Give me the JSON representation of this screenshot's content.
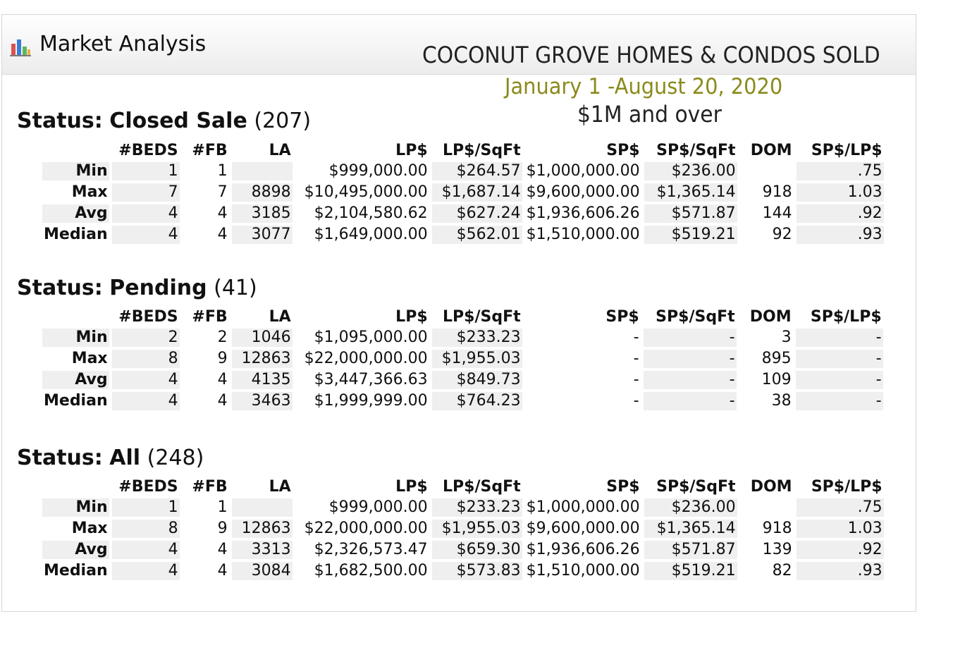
{
  "panel": {
    "title": "Market Analysis",
    "icon": "bar-chart-icon"
  },
  "banner": {
    "title": "COCONUT GROVE HOMES & CONDOS SOLD",
    "date_range": "January 1 -August 20, 2020",
    "subtitle": "$1M and over",
    "date_color": "#8a8a1c"
  },
  "columns": [
    "#BEDS",
    "#FB",
    "LA",
    "LP$",
    "LP$/SqFt",
    "SP$",
    "SP$/SqFt",
    "DOM",
    "SP$/LP$"
  ],
  "sections": [
    {
      "status_label": "Status:",
      "status_name": "Closed Sale",
      "count": "(207)",
      "rows": [
        {
          "label": "Min",
          "cells": [
            "1",
            "1",
            "",
            "$999,000.00",
            "$264.57",
            "$1,000,000.00",
            "$236.00",
            "",
            ".75"
          ]
        },
        {
          "label": "Max",
          "cells": [
            "7",
            "7",
            "8898",
            "$10,495,000.00",
            "$1,687.14",
            "$9,600,000.00",
            "$1,365.14",
            "918",
            "1.03"
          ]
        },
        {
          "label": "Avg",
          "cells": [
            "4",
            "4",
            "3185",
            "$2,104,580.62",
            "$627.24",
            "$1,936,606.26",
            "$571.87",
            "144",
            ".92"
          ]
        },
        {
          "label": "Median",
          "cells": [
            "4",
            "4",
            "3077",
            "$1,649,000.00",
            "$562.01",
            "$1,510,000.00",
            "$519.21",
            "92",
            ".93"
          ]
        }
      ]
    },
    {
      "status_label": "Status:",
      "status_name": "Pending",
      "count": "(41)",
      "rows": [
        {
          "label": "Min",
          "cells": [
            "2",
            "2",
            "1046",
            "$1,095,000.00",
            "$233.23",
            "-",
            "-",
            "3",
            "-"
          ]
        },
        {
          "label": "Max",
          "cells": [
            "8",
            "9",
            "12863",
            "$22,000,000.00",
            "$1,955.03",
            "-",
            "-",
            "895",
            "-"
          ]
        },
        {
          "label": "Avg",
          "cells": [
            "4",
            "4",
            "4135",
            "$3,447,366.63",
            "$849.73",
            "-",
            "-",
            "109",
            "-"
          ]
        },
        {
          "label": "Median",
          "cells": [
            "4",
            "4",
            "3463",
            "$1,999,999.00",
            "$764.23",
            "-",
            "-",
            "38",
            "-"
          ]
        }
      ]
    },
    {
      "status_label": "Status:",
      "status_name": "All",
      "count": "(248)",
      "rows": [
        {
          "label": "Min",
          "cells": [
            "1",
            "1",
            "",
            "$999,000.00",
            "$233.23",
            "$1,000,000.00",
            "$236.00",
            "",
            ".75"
          ]
        },
        {
          "label": "Max",
          "cells": [
            "8",
            "9",
            "12863",
            "$22,000,000.00",
            "$1,955.03",
            "$9,600,000.00",
            "$1,365.14",
            "918",
            "1.03"
          ]
        },
        {
          "label": "Avg",
          "cells": [
            "4",
            "4",
            "3313",
            "$2,326,573.47",
            "$659.30",
            "$1,936,606.26",
            "$571.87",
            "139",
            ".92"
          ]
        },
        {
          "label": "Median",
          "cells": [
            "4",
            "4",
            "3084",
            "$1,682,500.00",
            "$573.83",
            "$1,510,000.00",
            "$519.21",
            "82",
            ".93"
          ]
        }
      ]
    }
  ]
}
